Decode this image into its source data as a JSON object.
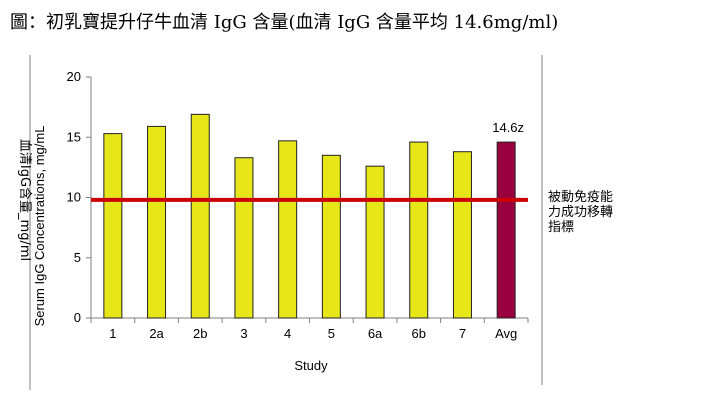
{
  "caption": "圖：初乳寶提升仔牛血清 IgG 含量(血清 IgG 含量平均 14.6mg/ml)",
  "chart_data": {
    "type": "bar",
    "categories": [
      "1",
      "2a",
      "2b",
      "3",
      "4",
      "5",
      "6a",
      "6b",
      "7",
      "Avg"
    ],
    "values": [
      15.3,
      15.9,
      16.9,
      13.3,
      14.7,
      13.5,
      12.6,
      14.6,
      13.8,
      14.6
    ],
    "bar_colors": [
      "#e6e619",
      "#e6e619",
      "#e6e619",
      "#e6e619",
      "#e6e619",
      "#e6e619",
      "#e6e619",
      "#e6e619",
      "#e6e619",
      "#99003d"
    ],
    "xlabel": "Study",
    "ylabel": "Serum IgG Concentrations, mg/mL",
    "ylabel_secondary": "血清IgG含量_mg/ml",
    "ylim": [
      0,
      20
    ],
    "yticks": [
      0,
      5,
      10,
      15,
      20
    ],
    "grid": false,
    "data_labels": [
      {
        "category": "Avg",
        "text": "14.6z"
      }
    ],
    "reference_line": {
      "value": 9.8,
      "color": "#cc0000",
      "label_lines": [
        "被動免疫能",
        "力成功移轉",
        "指標"
      ]
    }
  }
}
